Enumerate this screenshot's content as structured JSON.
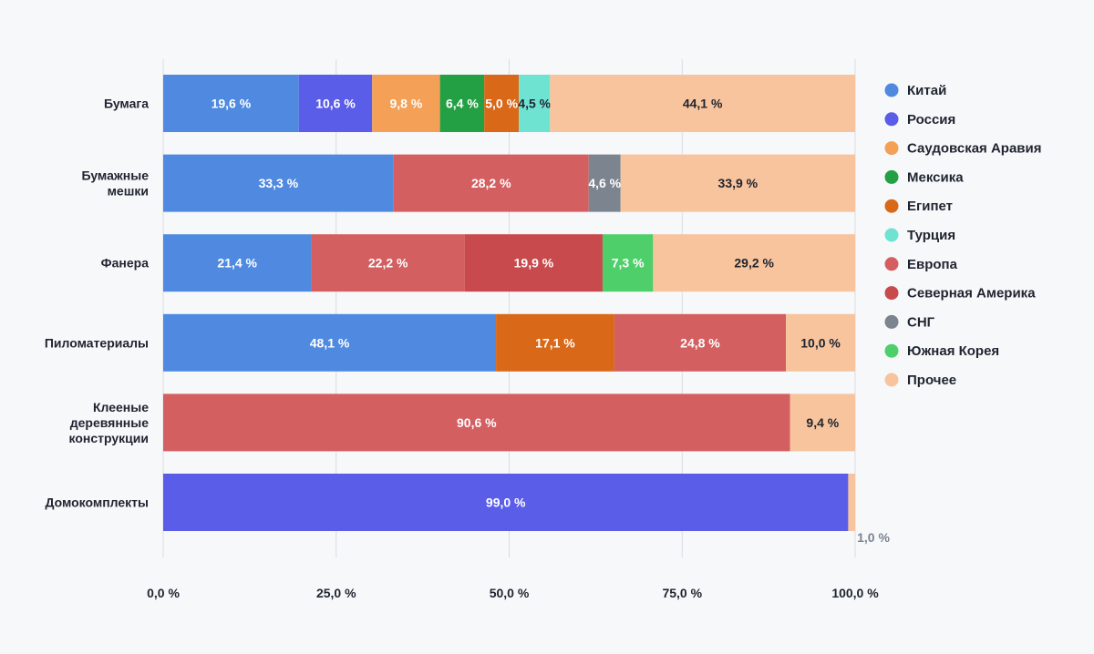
{
  "chart_data": {
    "type": "bar",
    "orientation": "horizontal",
    "stacked": true,
    "xlim": [
      0,
      100
    ],
    "x_ticks": [
      "0,0 %",
      "25,0 %",
      "50,0 %",
      "75,0 %",
      "100,0 %"
    ],
    "grid": true,
    "legend_position": "right",
    "categories": [
      [
        "Бумага"
      ],
      [
        "Бумажные",
        "мешки"
      ],
      [
        "Фанера"
      ],
      [
        "Пиломатериалы"
      ],
      [
        "Клееные",
        "деревянные",
        "конструкции"
      ],
      [
        "Домокомплекты"
      ]
    ],
    "series": [
      {
        "name": "Китай",
        "color": "#4f8ae0",
        "label_color": "#ffffff",
        "values": [
          19.6,
          33.3,
          21.4,
          48.1,
          0,
          0
        ],
        "labels": [
          "19,6 %",
          "33,3 %",
          "21,4 %",
          "48,1 %",
          "",
          ""
        ]
      },
      {
        "name": "Россия",
        "color": "#5a5de8",
        "label_color": "#ffffff",
        "values": [
          10.6,
          0,
          0,
          0,
          0,
          99.0
        ],
        "labels": [
          "10,6 %",
          "",
          "",
          "",
          "",
          "99,0 %"
        ]
      },
      {
        "name": "Саудовская Аравия",
        "color": "#f4a057",
        "label_color": "#ffffff",
        "values": [
          9.8,
          0,
          0,
          0,
          0,
          0
        ],
        "labels": [
          "9,8 %",
          "",
          "",
          "",
          "",
          ""
        ]
      },
      {
        "name": "Мексика",
        "color": "#23a043",
        "label_color": "#ffffff",
        "values": [
          6.4,
          0,
          0,
          0,
          0,
          0
        ],
        "labels": [
          "6,4 %",
          "",
          "",
          "",
          "",
          ""
        ]
      },
      {
        "name": "Египет",
        "color": "#d96818",
        "label_color": "#ffffff",
        "values": [
          5.0,
          0,
          0,
          17.1,
          0,
          0
        ],
        "labels": [
          "5,0 %",
          "",
          "",
          "17,1 %",
          "",
          ""
        ]
      },
      {
        "name": "Турция",
        "color": "#6fe3d1",
        "label_color": "#1f2430",
        "values": [
          4.5,
          0,
          0,
          0,
          0,
          0
        ],
        "labels": [
          "4,5 %",
          "",
          "",
          "",
          "",
          ""
        ]
      },
      {
        "name": "Европа",
        "color": "#d45f61",
        "label_color": "#ffffff",
        "values": [
          0,
          28.2,
          22.2,
          24.8,
          90.6,
          0
        ],
        "labels": [
          "",
          "28,2 %",
          "22,2 %",
          "24,8 %",
          "90,6 %",
          ""
        ]
      },
      {
        "name": "Северная Америка",
        "color": "#c84a4c",
        "label_color": "#ffffff",
        "values": [
          0,
          0,
          19.9,
          0,
          0,
          0
        ],
        "labels": [
          "",
          "",
          "19,9 %",
          "",
          "",
          ""
        ]
      },
      {
        "name": "СНГ",
        "color": "#7b848f",
        "label_color": "#ffffff",
        "values": [
          0,
          4.6,
          0,
          0,
          0,
          0
        ],
        "labels": [
          "",
          "4,6 %",
          "",
          "",
          "",
          ""
        ]
      },
      {
        "name": "Южная Корея",
        "color": "#4fcf6a",
        "label_color": "#ffffff",
        "values": [
          0,
          0,
          7.3,
          0,
          0,
          0
        ],
        "labels": [
          "",
          "",
          "7,3 %",
          "",
          "",
          ""
        ]
      },
      {
        "name": "Прочее",
        "color": "#f7c49d",
        "label_color": "#1f2430",
        "values": [
          44.1,
          33.9,
          29.2,
          10.0,
          9.4,
          1.0
        ],
        "labels": [
          "44,1 %",
          "33,9 %",
          "29,2 %",
          "10,0 %",
          "9,4 %",
          "1,0 %"
        ]
      }
    ],
    "outside_label_color": "#7b848f"
  }
}
